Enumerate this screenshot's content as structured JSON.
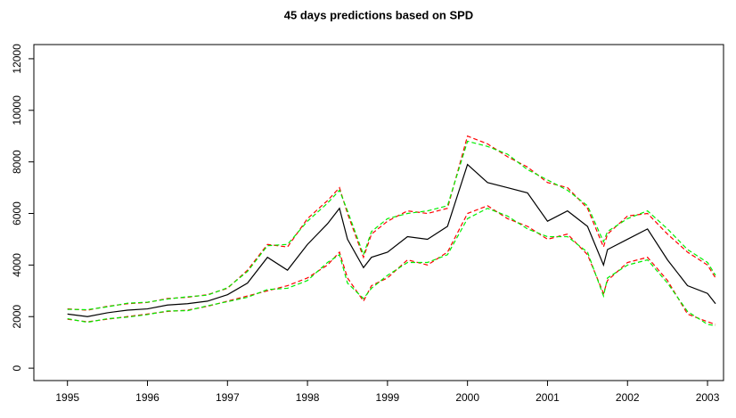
{
  "chart_data": {
    "type": "line",
    "title": "45 days predictions based on SPD",
    "x": [
      1995,
      1995.25,
      1995.5,
      1995.75,
      1996,
      1996.25,
      1996.5,
      1996.75,
      1997,
      1997.25,
      1997.5,
      1997.75,
      1998,
      1998.25,
      1998.4,
      1998.5,
      1998.7,
      1998.8,
      1999,
      1999.25,
      1999.5,
      1999.75,
      2000,
      2000.25,
      2000.5,
      2000.75,
      2001,
      2001.25,
      2001.5,
      2001.7,
      2001.75,
      2002,
      2002.25,
      2002.5,
      2002.75,
      2003,
      2003.1
    ],
    "series": [
      {
        "color": "#ff0000",
        "dash": true,
        "values": [
          2300,
          2250,
          2400,
          2500,
          2550,
          2700,
          2750,
          2850,
          3100,
          3800,
          4800,
          4700,
          5800,
          6500,
          7000,
          6000,
          4300,
          5200,
          5700,
          6100,
          6000,
          6200,
          9000,
          8700,
          8200,
          7800,
          7200,
          7000,
          6200,
          4700,
          5200,
          5900,
          6000,
          5200,
          4500,
          4000,
          3500
        ]
      },
      {
        "color": "#ff0000",
        "dash": true,
        "values": [
          1900,
          1800,
          1900,
          2000,
          2100,
          2200,
          2250,
          2400,
          2600,
          2800,
          3000,
          3200,
          3500,
          4000,
          4500,
          3500,
          2600,
          3200,
          3500,
          4200,
          4000,
          4500,
          6000,
          6300,
          5800,
          5500,
          5000,
          5200,
          4400,
          2900,
          3400,
          4100,
          4300,
          3400,
          2100,
          1800,
          1700
        ]
      },
      {
        "color": "#00ee00",
        "dash": true,
        "values": [
          2280,
          2270,
          2380,
          2520,
          2560,
          2680,
          2770,
          2830,
          3120,
          3750,
          4750,
          4800,
          5700,
          6400,
          6900,
          6100,
          4400,
          5300,
          5800,
          6000,
          6100,
          6300,
          8800,
          8600,
          8300,
          7700,
          7300,
          6900,
          6300,
          4900,
          5300,
          5800,
          6100,
          5400,
          4600,
          4100,
          3600
        ]
      },
      {
        "color": "#00ee00",
        "dash": true,
        "values": [
          1920,
          1780,
          1920,
          1980,
          2080,
          2220,
          2230,
          2420,
          2580,
          2750,
          3050,
          3100,
          3400,
          4100,
          4400,
          3300,
          2700,
          3100,
          3600,
          4100,
          4100,
          4400,
          5800,
          6200,
          5900,
          5400,
          5100,
          5100,
          4500,
          2800,
          3500,
          4000,
          4200,
          3300,
          2200,
          1700,
          1650
        ]
      },
      {
        "color": "#000000",
        "dash": false,
        "values": [
          2100,
          2000,
          2150,
          2250,
          2300,
          2450,
          2500,
          2600,
          2850,
          3300,
          4300,
          3800,
          4800,
          5600,
          6200,
          5000,
          3900,
          4300,
          4500,
          5100,
          5000,
          5500,
          7900,
          7200,
          7000,
          6800,
          5700,
          6100,
          5500,
          4000,
          4600,
          5000,
          5400,
          4200,
          3200,
          2900,
          2500
        ]
      }
    ],
    "xlim": [
      1994.58,
      2003.2
    ],
    "ylim": [
      -480,
      12550
    ],
    "xticks": [
      1995,
      1996,
      1997,
      1998,
      1999,
      2000,
      2001,
      2002,
      2003
    ],
    "yticks": [
      0,
      2000,
      4000,
      6000,
      8000,
      10000,
      12000
    ]
  }
}
